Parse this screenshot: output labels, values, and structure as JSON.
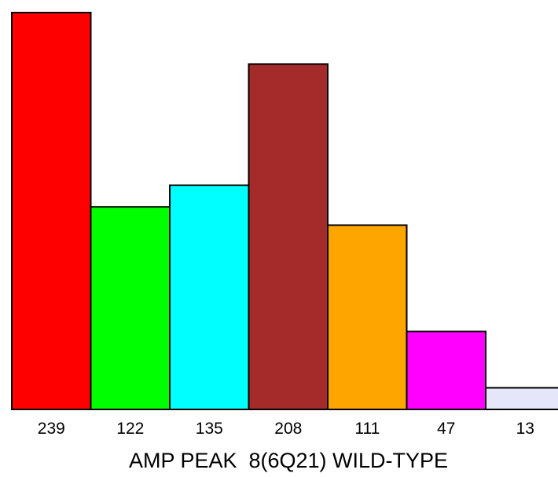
{
  "chart_data": {
    "type": "bar",
    "categories": [
      "239",
      "122",
      "135",
      "208",
      "111",
      "47",
      "13"
    ],
    "values": [
      239,
      122,
      135,
      208,
      111,
      47,
      13
    ],
    "colors": [
      "#ff0000",
      "#00ff00",
      "#00ffff",
      "#a52a2a",
      "#ffa500",
      "#ff00ff",
      "#e6e6fa"
    ],
    "title": "",
    "xlabel": "AMP PEAK  8(6Q21) WILD-TYPE",
    "ylabel": "",
    "ylim": [
      0,
      239
    ],
    "grid": false,
    "legend": "none"
  }
}
